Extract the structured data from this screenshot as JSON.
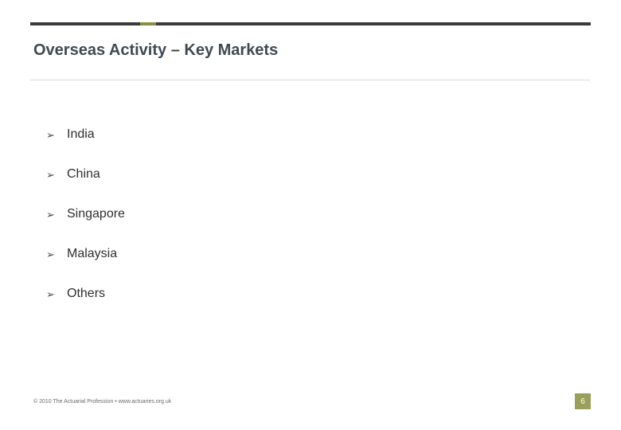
{
  "colors": {
    "top_bar": "#3a3a3a",
    "top_bar_accent": "#8a8f3f",
    "title": "#3f4a53",
    "underline": "#d8d8d8",
    "body_text": "#2f2f2f",
    "bullet": "#4a4a4a",
    "footer_text": "#6a6a6a",
    "page_num_bg": "#9aa05a",
    "page_num_text": "#ffffff"
  },
  "title": "Overseas Activity – Key Markets",
  "bullets": [
    "India",
    "China",
    "Singapore",
    "Malaysia",
    "Others"
  ],
  "footer": "© 2010 The Actuarial Profession • www.actuaries.org.uk",
  "page_number": "6",
  "bullet_glyph": "➢"
}
